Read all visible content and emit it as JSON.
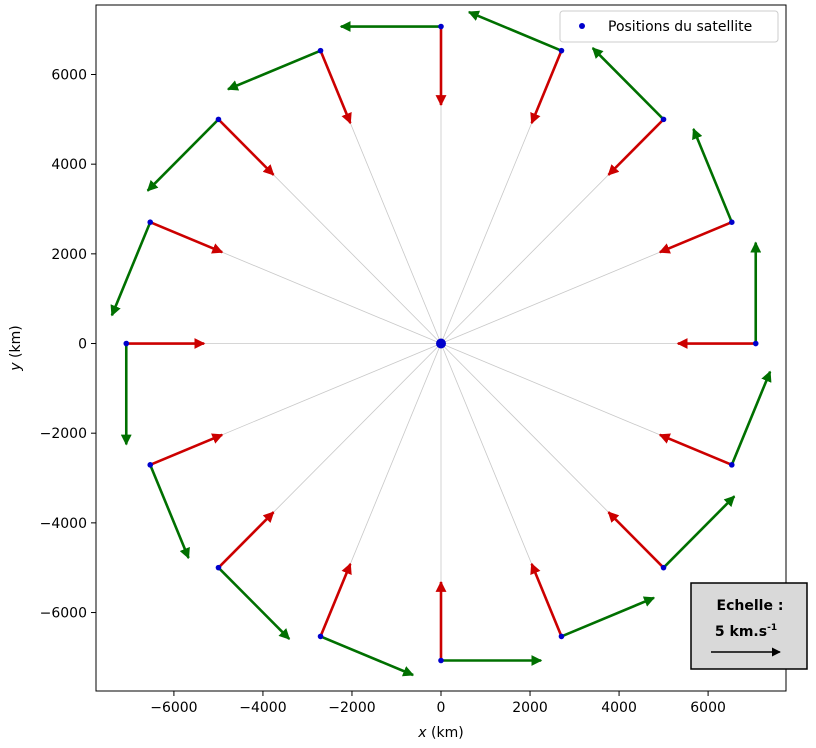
{
  "chart_data": {
    "type": "scatter",
    "xlabel_var": "x",
    "xlabel_unit": " (km)",
    "ylabel_var": "y",
    "ylabel_unit": " (km)",
    "xlim": [
      -7750,
      7750
    ],
    "ylim": [
      -7750,
      7550
    ],
    "xticks": [
      -6000,
      -4000,
      -2000,
      0,
      2000,
      4000,
      6000
    ],
    "yticks": [
      -6000,
      -4000,
      -2000,
      0,
      2000,
      4000,
      6000
    ],
    "grid": false,
    "legend": {
      "position": "top-right",
      "label": "Positions du satellite"
    },
    "orbit_radius_km": 7070,
    "central_body": {
      "x": 0,
      "y": 0
    },
    "positions": [
      {
        "x": 7070,
        "y": 0
      },
      {
        "x": 6532,
        "y": 2706
      },
      {
        "x": 4999,
        "y": 4999
      },
      {
        "x": 2706,
        "y": 6532
      },
      {
        "x": 0,
        "y": 7070
      },
      {
        "x": -2706,
        "y": 6532
      },
      {
        "x": -4999,
        "y": 4999
      },
      {
        "x": -6532,
        "y": 2706
      },
      {
        "x": -7070,
        "y": 0
      },
      {
        "x": -6532,
        "y": -2706
      },
      {
        "x": -4999,
        "y": -4999
      },
      {
        "x": -2706,
        "y": -6532
      },
      {
        "x": 0,
        "y": -7070
      },
      {
        "x": 2706,
        "y": -6532
      },
      {
        "x": 4999,
        "y": -4999
      },
      {
        "x": 6532,
        "y": -2706
      }
    ],
    "velocity_vector_length_km": 2250,
    "acceleration_vector_length_km": 1750,
    "colors": {
      "positions": "#0000cc",
      "velocity": "#007000",
      "acceleration": "#cc0000",
      "radial_lines": "#c8c8c8"
    },
    "scale_box": {
      "title": "Echelle :",
      "value": "5 km.s",
      "exponent": "-1"
    }
  }
}
